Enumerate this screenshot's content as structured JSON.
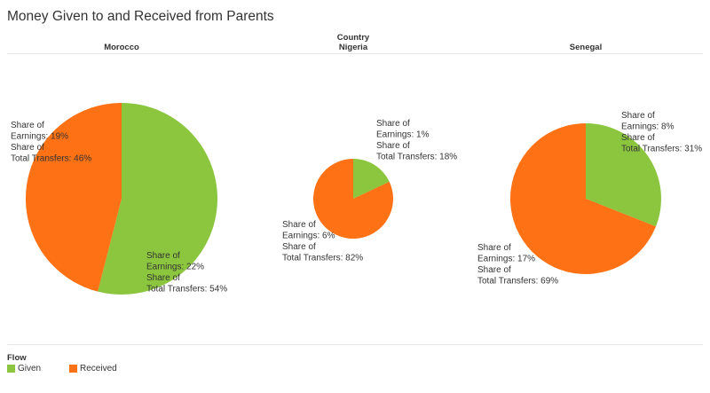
{
  "title": "Money Given to and Received from Parents",
  "column_header": "Country",
  "legend": {
    "title": "Flow",
    "items": [
      {
        "label": "Given",
        "color": "#8cc63f"
      },
      {
        "label": "Received",
        "color": "#ff7115"
      }
    ]
  },
  "chart_data": {
    "type": "pie",
    "label_template": [
      "Share of",
      "Earnings: {earnings}%",
      "Share of",
      "Total Transfers: {transfers}%"
    ],
    "pies": [
      {
        "country": "Morocco",
        "slices": [
          {
            "flow": "Given",
            "share_of_earnings": 22,
            "share_of_total_transfers": 54
          },
          {
            "flow": "Received",
            "share_of_earnings": 19,
            "share_of_total_transfers": 46
          }
        ]
      },
      {
        "country": "Nigeria",
        "slices": [
          {
            "flow": "Given",
            "share_of_earnings": 1,
            "share_of_total_transfers": 18
          },
          {
            "flow": "Received",
            "share_of_earnings": 6,
            "share_of_total_transfers": 82
          }
        ]
      },
      {
        "country": "Senegal",
        "slices": [
          {
            "flow": "Given",
            "share_of_earnings": 8,
            "share_of_total_transfers": 31
          },
          {
            "flow": "Received",
            "share_of_earnings": 17,
            "share_of_total_transfers": 69
          }
        ]
      }
    ]
  }
}
